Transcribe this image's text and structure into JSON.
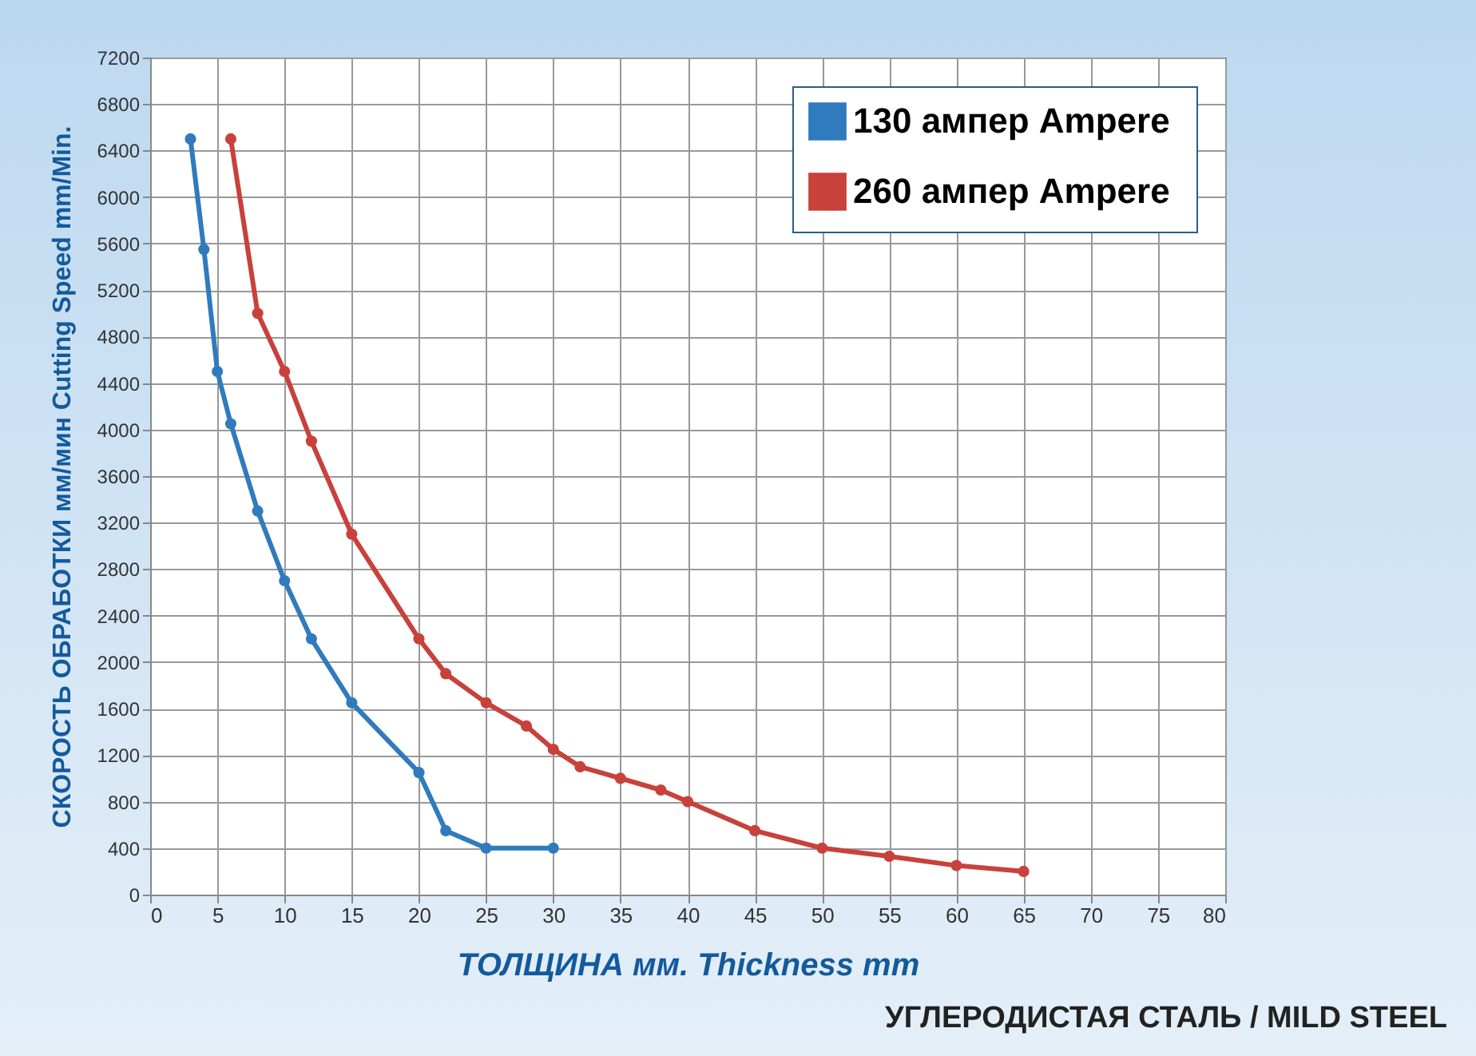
{
  "chart_data": {
    "type": "line",
    "xlabel": "ТОЛЩИНА мм.  Thickness mm",
    "ylabel": "СКОРОСТЬ ОБРАБОТКИ мм/мин  Cutting Speed mm/Min.",
    "annotations": [
      "УГЛЕРОДИСТАЯ СТАЛЬ / MILD STEEL"
    ],
    "series": [
      {
        "name": "130 ампер  Ampere",
        "color": "#2f7bbd",
        "x": [
          3,
          4,
          5,
          6,
          8,
          10,
          12,
          15,
          20,
          22,
          25,
          30
        ],
        "values": [
          6500,
          5550,
          4500,
          4050,
          3300,
          2700,
          2200,
          1650,
          1050,
          550,
          400,
          400
        ]
      },
      {
        "name": "260 ампер  Ampere",
        "color": "#c8413b",
        "x": [
          6,
          8,
          10,
          12,
          15,
          20,
          22,
          25,
          28,
          30,
          32,
          35,
          38,
          40,
          45,
          50,
          55,
          60,
          65
        ],
        "values": [
          6500,
          5000,
          4500,
          3900,
          3100,
          2200,
          1900,
          1650,
          1450,
          1250,
          1100,
          1000,
          900,
          800,
          550,
          400,
          330,
          250,
          200
        ]
      }
    ],
    "xlim": [
      0,
      80
    ],
    "xticks": [
      0,
      5,
      10,
      15,
      20,
      25,
      30,
      35,
      40,
      45,
      50,
      55,
      60,
      65,
      70,
      75,
      80
    ],
    "ylim": [
      0,
      7200
    ],
    "yticks": [
      0,
      400,
      800,
      1200,
      1600,
      2000,
      2400,
      2800,
      3200,
      3600,
      4000,
      4400,
      4800,
      5200,
      5600,
      6000,
      6400,
      6800,
      7200
    ],
    "grid": true,
    "legend": "top right",
    "marker": "circle",
    "line_style": "solid"
  }
}
